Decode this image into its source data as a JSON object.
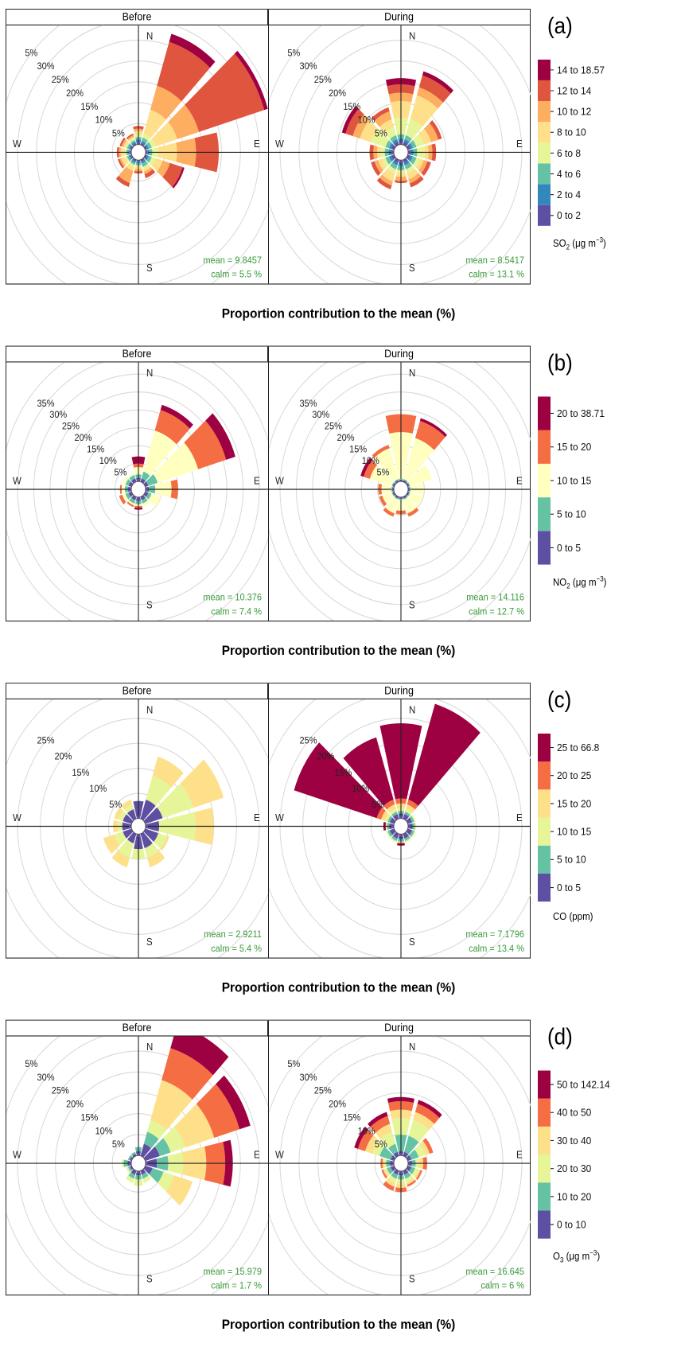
{
  "chart_data": [
    {
      "type": "polar-bar",
      "panel_label": "(a)",
      "facets": [
        "Before",
        "During"
      ],
      "caption": "Proportion contribution to the mean (%)",
      "legend_title": "SO2 (μg m−3)",
      "legend_title_parts": {
        "base": "SO",
        "sub": "2",
        "rest": " (μg m",
        "sup": "−3",
        "close": ")"
      },
      "bins": [
        "0 to 2",
        "2 to 4",
        "4 to 6",
        "6 to 8",
        "8 to 10",
        "10 to 12",
        "12 to 14",
        "14 to 18.57"
      ],
      "colors": [
        "#5E4FA2",
        "#3288BD",
        "#66C2A5",
        "#E6F598",
        "#FEE08B",
        "#FDAE61",
        "#E0553D",
        "#9E0142"
      ],
      "rmax": 30,
      "ring_labels": [
        "5%",
        "10%",
        "15%",
        "20%",
        "25%",
        "30%",
        "5%"
      ],
      "directions": [
        "N",
        "E",
        "S",
        "W"
      ],
      "stats": [
        {
          "mean": "mean  =  9.8457",
          "calm": "calm =  5.5 %"
        },
        {
          "mean": "mean  =  8.5417",
          "calm": "calm =  13.1 %"
        }
      ],
      "angles": [
        0,
        30,
        60,
        90,
        120,
        150,
        180,
        210,
        240,
        270,
        300,
        330
      ],
      "series": [
        {
          "name": "Before",
          "wedges": [
            [
              0.6,
              0.6,
              0.6,
              0.6,
              0.8,
              0.6,
              0.6,
              0
            ],
            [
              0.5,
              0.5,
              0.8,
              1,
              6,
              6,
              11,
              2
            ],
            [
              0.5,
              0.5,
              0.8,
              1,
              6,
              6,
              18,
              1
            ],
            [
              0.5,
              0.5,
              0.8,
              1.5,
              5,
              5,
              6,
              0
            ],
            [
              0.5,
              0.5,
              0.8,
              1,
              2,
              2,
              3.5,
              0.5
            ],
            [
              0.5,
              0.5,
              0.8,
              0.6,
              0.6,
              0.6,
              1,
              0
            ],
            [
              0.4,
              0.4,
              0.4,
              0.5,
              0.5,
              0.5,
              0.5,
              0
            ],
            [
              0.4,
              0.4,
              0.5,
              0.5,
              1,
              3,
              1,
              0
            ],
            [
              0.4,
              0.4,
              0.5,
              0.5,
              1,
              0.5,
              0.5,
              0
            ],
            [
              0.4,
              0.4,
              0.5,
              0.5,
              1,
              0.5,
              0.5,
              0
            ],
            [
              0.4,
              0.4,
              0.5,
              0.5,
              0.5,
              0.5,
              0.5,
              0
            ],
            [
              0.4,
              0.4,
              0.4,
              0.4,
              0.4,
              0.4,
              0.4,
              0
            ]
          ]
        },
        {
          "name": "During",
          "wedges": [
            [
              0.8,
              0.6,
              1,
              4,
              4,
              2,
              2,
              1.5
            ],
            [
              0.8,
              0.6,
              1,
              4,
              6,
              2,
              3,
              1
            ],
            [
              0.8,
              0.6,
              1,
              2,
              2,
              2,
              1,
              0
            ],
            [
              0.8,
              0.6,
              1,
              2,
              1,
              1,
              1,
              0
            ],
            [
              0.8,
              0.6,
              1,
              1,
              1,
              1,
              1,
              0
            ],
            [
              0.8,
              0.6,
              1,
              1,
              1.5,
              1,
              1,
              0
            ],
            [
              0.8,
              0.6,
              1,
              0.8,
              0.8,
              1,
              0.5,
              0
            ],
            [
              0.8,
              0.6,
              1,
              1,
              2,
              1,
              1,
              0
            ],
            [
              0.8,
              0.6,
              1,
              1,
              1,
              1,
              1,
              0
            ],
            [
              0.8,
              0.6,
              1,
              1,
              1,
              1,
              1,
              0
            ],
            [
              0.8,
              0.6,
              1,
              4,
              3,
              2,
              2,
              1
            ],
            [
              0.8,
              0.6,
              1,
              2,
              2,
              2,
              1,
              0
            ]
          ]
        }
      ]
    },
    {
      "type": "polar-bar",
      "panel_label": "(b)",
      "facets": [
        "Before",
        "During"
      ],
      "caption": "Proportion contribution to the mean (%)",
      "legend_title": "NO2 (μg m−3)",
      "legend_title_parts": {
        "base": "NO",
        "sub": "2",
        "rest": " (μg m",
        "sup": "−3",
        "close": ")"
      },
      "bins": [
        "0 to 5",
        "5 to 10",
        "10 to 15",
        "15 to 20",
        "20 to 38.71"
      ],
      "colors": [
        "#5E4FA2",
        "#66C2A5",
        "#FFFFBF",
        "#F46D43",
        "#9E0142"
      ],
      "rmax": 35,
      "ring_labels": [
        "5%",
        "10%",
        "15%",
        "20%",
        "25%",
        "30%",
        "35%"
      ],
      "directions": [
        "N",
        "E",
        "S",
        "W"
      ],
      "stats": [
        {
          "mean": "mean  =  10.376",
          "calm": "calm =  7.4 %"
        },
        {
          "mean": "mean  =  14.116",
          "calm": "calm =  12.7 %"
        }
      ],
      "angles": [
        0,
        30,
        60,
        90,
        120,
        150,
        180,
        210,
        240,
        270,
        300,
        330
      ],
      "series": [
        {
          "name": "Before",
          "wedges": [
            [
              1,
              1,
              2,
              1,
              2
            ],
            [
              1,
              2,
              12,
              6,
              1.5
            ],
            [
              1,
              3,
              13,
              9,
              3
            ],
            [
              1,
              2,
              5,
              2,
              0
            ],
            [
              1,
              1,
              3,
              0,
              0
            ],
            [
              1,
              1,
              1,
              0,
              0
            ],
            [
              1,
              1,
              0.5,
              0.5,
              0.5
            ],
            [
              1,
              1,
              0.5,
              0.5,
              0
            ],
            [
              1,
              1,
              1,
              1,
              0
            ],
            [
              1,
              1,
              1,
              0.5,
              0
            ],
            [
              1,
              1,
              1,
              0,
              0
            ],
            [
              1,
              1,
              0.5,
              0,
              0
            ]
          ]
        },
        {
          "name": "During",
          "wedges": [
            [
              0.5,
              0.3,
              13,
              5,
              0
            ],
            [
              0.5,
              0.3,
              12,
              5,
              0.8
            ],
            [
              0.5,
              0.3,
              7,
              0,
              0
            ],
            [
              0.5,
              0.3,
              4,
              0,
              0
            ],
            [
              0.5,
              0.3,
              4,
              0,
              0
            ],
            [
              0.5,
              0.3,
              4,
              1,
              0
            ],
            [
              0.5,
              0.3,
              3,
              1,
              0
            ],
            [
              0.5,
              0.3,
              4,
              1,
              0
            ],
            [
              0.5,
              0.3,
              3,
              1,
              0
            ],
            [
              0.5,
              0.3,
              3,
              1,
              0
            ],
            [
              0.5,
              0.3,
              7,
              2,
              1
            ],
            [
              0.5,
              0.3,
              9,
              1,
              0
            ]
          ]
        }
      ]
    },
    {
      "type": "polar-bar",
      "panel_label": "(c)",
      "facets": [
        "Before",
        "During"
      ],
      "caption": "Proportion contribution to the mean (%)",
      "legend_title": "CO (ppm)",
      "legend_title_parts": {
        "base": "CO (ppm)",
        "sub": "",
        "rest": "",
        "sup": "",
        "close": ""
      },
      "bins": [
        "0 to 5",
        "5 to 10",
        "10 to 15",
        "15 to 20",
        "20 to 25",
        "25 to 66.8"
      ],
      "colors": [
        "#5E4FA2",
        "#66C2A5",
        "#E6F598",
        "#FEE08B",
        "#F46D43",
        "#9E0142"
      ],
      "rmax": 25,
      "ring_labels": [
        "5%",
        "10%",
        "15%",
        "20%",
        "25%"
      ],
      "directions": [
        "N",
        "E",
        "S",
        "W"
      ],
      "stats": [
        {
          "mean": "mean  =  2.9211",
          "calm": "calm =  5.4 %"
        },
        {
          "mean": "mean  =  7.1796",
          "calm": "calm =  13.4 %"
        }
      ],
      "angles": [
        0,
        30,
        60,
        90,
        120,
        150,
        180,
        210,
        240,
        270,
        300,
        330
      ],
      "series": [
        {
          "name": "Before",
          "wedges": [
            [
              3.5,
              0,
              0,
              0,
              0,
              0
            ],
            [
              4,
              0,
              5,
              4,
              0,
              0
            ],
            [
              4,
              0,
              7,
              7,
              0,
              0
            ],
            [
              3,
              0,
              8,
              4,
              0,
              0
            ],
            [
              3,
              0,
              2,
              0.5,
              0,
              0
            ],
            [
              3,
              0,
              2,
              2,
              0,
              0
            ],
            [
              3,
              0,
              2,
              0,
              0,
              0
            ],
            [
              2,
              0,
              3,
              2,
              0,
              0
            ],
            [
              2,
              0,
              2,
              2.5,
              0,
              0
            ],
            [
              2,
              0,
              1,
              1,
              0,
              0
            ],
            [
              2,
              0,
              1,
              1,
              0,
              0
            ],
            [
              2,
              0,
              1,
              1,
              0,
              0
            ]
          ]
        },
        {
          "name": "During",
          "wedges": [
            [
              1,
              0.5,
              0.5,
              1,
              1,
              15
            ],
            [
              1,
              0.5,
              0.5,
              1,
              1,
              20
            ],
            [
              1,
              0.5,
              0.3,
              0,
              0,
              0
            ],
            [
              1,
              0.5,
              0.3,
              0,
              0,
              0
            ],
            [
              1,
              0.5,
              0.3,
              0,
              0,
              0
            ],
            [
              1,
              0.5,
              0.3,
              0,
              0,
              0
            ],
            [
              1,
              0.5,
              0.3,
              0,
              0,
              0.5
            ],
            [
              1,
              0.5,
              0.3,
              0,
              0,
              0
            ],
            [
              1,
              0.5,
              0.3,
              0,
              0,
              0
            ],
            [
              1,
              0.5,
              0.3,
              0,
              0,
              0.5
            ],
            [
              1,
              0.5,
              0.5,
              1,
              1,
              19
            ],
            [
              1,
              0.5,
              0.5,
              1,
              1,
              13
            ]
          ]
        }
      ]
    },
    {
      "type": "polar-bar",
      "panel_label": "(d)",
      "facets": [
        "Before",
        "During"
      ],
      "caption": "Proportion contribution to the mean (%)",
      "legend_title": "O3 (μg m−3)",
      "legend_title_parts": {
        "base": "O",
        "sub": "3",
        "rest": " (μg m",
        "sup": "−3",
        "close": ")"
      },
      "bins": [
        "0 to 10",
        "10 to 20",
        "20 to 30",
        "30 to 40",
        "40 to 50",
        "50 to 142.14"
      ],
      "colors": [
        "#5E4FA2",
        "#66C2A5",
        "#E6F598",
        "#FEE08B",
        "#F46D43",
        "#9E0142"
      ],
      "rmax": 30,
      "ring_labels": [
        "5%",
        "10%",
        "15%",
        "20%",
        "25%",
        "30%",
        "5%"
      ],
      "directions": [
        "N",
        "E",
        "S",
        "W"
      ],
      "stats": [
        {
          "mean": "mean  =  15.979",
          "calm": "calm =  1.7 %"
        },
        {
          "mean": "mean  =  16.645",
          "calm": "calm =  6 %"
        }
      ],
      "angles": [
        0,
        30,
        60,
        90,
        120,
        150,
        180,
        210,
        240,
        270,
        300,
        330
      ],
      "series": [
        {
          "name": "Before",
          "wedges": [
            [
              1,
              1,
              0,
              0,
              0,
              0
            ],
            [
              3,
              3,
              3,
              10,
              8,
              6
            ],
            [
              4,
              3,
              4,
              8,
              7,
              3
            ],
            [
              3,
              3,
              4,
              6,
              5,
              2
            ],
            [
              2,
              3,
              3,
              5,
              0,
              0
            ],
            [
              1,
              1,
              1,
              0,
              0,
              0
            ],
            [
              1,
              1,
              1.5,
              0,
              0,
              0
            ],
            [
              1,
              1,
              1,
              0,
              0,
              0
            ],
            [
              0.5,
              0.5,
              0.5,
              0,
              0,
              0
            ],
            [
              1,
              1,
              0.5,
              0,
              0,
              0
            ],
            [
              0.5,
              0.5,
              0,
              0,
              0,
              0
            ],
            [
              0.5,
              0.5,
              0,
              0,
              0,
              0
            ]
          ]
        },
        {
          "name": "During",
          "wedges": [
            [
              1,
              4,
              4,
              2,
              2,
              1
            ],
            [
              1,
              4,
              4,
              2,
              2,
              1
            ],
            [
              1,
              2,
              2,
              1,
              1,
              0
            ],
            [
              1,
              1,
              1,
              1,
              1,
              0
            ],
            [
              1,
              1,
              1,
              0.5,
              0.5,
              0
            ],
            [
              1,
              1,
              1,
              0.5,
              0.5,
              0
            ],
            [
              1,
              1,
              1,
              1,
              1,
              0
            ],
            [
              1,
              1,
              1,
              1,
              1,
              0
            ],
            [
              1,
              1,
              0.5,
              0.5,
              0.5,
              0
            ],
            [
              1,
              1,
              0.5,
              0.5,
              0.5,
              0
            ],
            [
              1,
              3,
              2,
              2,
              2,
              1
            ],
            [
              1,
              2,
              3,
              2,
              2,
              1
            ]
          ]
        }
      ]
    }
  ]
}
